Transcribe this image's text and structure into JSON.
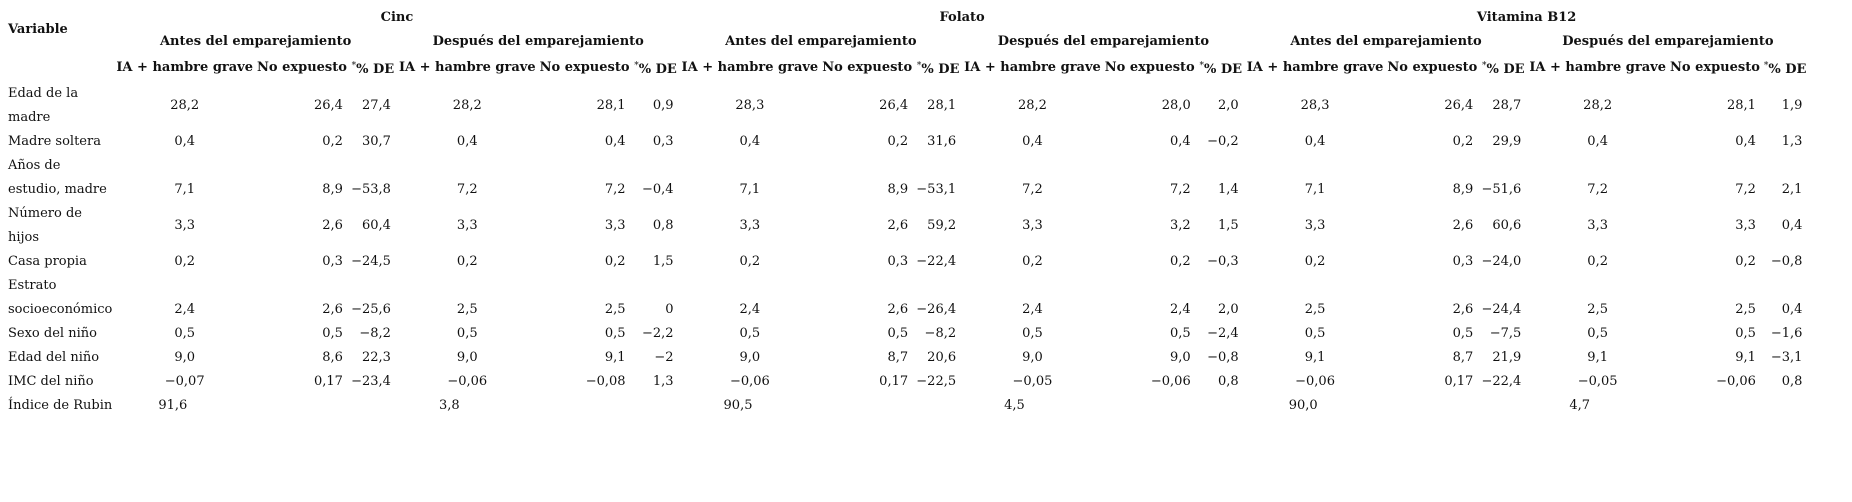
{
  "table": {
    "variable_header": "Variable",
    "nutrients": [
      "Cinc",
      "Folato",
      "Vitamina B12"
    ],
    "phases": [
      "Antes del emparejamiento",
      "Después del emparejamiento"
    ],
    "col_headers": [
      "IA + hambre grave",
      "No expuesto",
      "*",
      "% DE"
    ],
    "rows": [
      {
        "label": "Edad de la madre",
        "cells": [
          "28,2",
          "26,4",
          "27,4",
          "28,2",
          "28,1",
          "0,9",
          "28,3",
          "26,4",
          "28,1",
          "28,2",
          "28,0",
          "2,0",
          "28,3",
          "26,4",
          "28,7",
          "28,2",
          "28,1",
          "1,9"
        ]
      },
      {
        "label": "Madre soltera",
        "cells": [
          "0,4",
          "0,2",
          "30,7",
          "0,4",
          "0,4",
          "0,3",
          "0,4",
          "0,2",
          "31,6",
          "0,4",
          "0,4",
          "−0,2",
          "0,4",
          "0,2",
          "29,9",
          "0,4",
          "0,4",
          "1,3"
        ]
      },
      {
        "label": "Años de estudio, madre",
        "cells": [
          "7,1",
          "8,9",
          "−53,8",
          "7,2",
          "7,2",
          "−0,4",
          "7,1",
          "8,9",
          "−53,1",
          "7,2",
          "7,2",
          "1,4",
          "7,1",
          "8,9",
          "−51,6",
          "7,2",
          "7,2",
          "2,1"
        ]
      },
      {
        "label": "Número de hijos",
        "cells": [
          "3,3",
          "2,6",
          "60,4",
          "3,3",
          "3,3",
          "0,8",
          "3,3",
          "2,6",
          "59,2",
          "3,3",
          "3,2",
          "1,5",
          "3,3",
          "2,6",
          "60,6",
          "3,3",
          "3,3",
          "0,4"
        ]
      },
      {
        "label": "Casa propia",
        "cells": [
          "0,2",
          "0,3",
          "−24,5",
          "0,2",
          "0,2",
          "1,5",
          "0,2",
          "0,3",
          "−22,4",
          "0,2",
          "0,2",
          "−0,3",
          "0,2",
          "0,3",
          "−24,0",
          "0,2",
          "0,2",
          "−0,8"
        ]
      },
      {
        "label": "Estrato socioeconómico",
        "cells": [
          "2,4",
          "2,6",
          "−25,6",
          "2,5",
          "2,5",
          "0",
          "2,4",
          "2,6",
          "−26,4",
          "2,4",
          "2,4",
          "2,0",
          "2,5",
          "2,6",
          "−24,4",
          "2,5",
          "2,5",
          "0,4"
        ]
      },
      {
        "label": "Sexo del niño",
        "cells": [
          "0,5",
          "0,5",
          "−8,2",
          "0,5",
          "0,5",
          "−2,2",
          "0,5",
          "0,5",
          "−8,2",
          "0,5",
          "0,5",
          "−2,4",
          "0,5",
          "0,5",
          "−7,5",
          "0,5",
          "0,5",
          "−1,6"
        ]
      },
      {
        "label": "Edad del niño",
        "cells": [
          "9,0",
          "8,6",
          "22,3",
          "9,0",
          "9,1",
          "−2",
          "9,0",
          "8,7",
          "20,6",
          "9,0",
          "9,0",
          "−0,8",
          "9,1",
          "8,7",
          "21,9",
          "9,1",
          "9,1",
          "−3,1"
        ]
      },
      {
        "label": "IMC del niño",
        "cells": [
          "−0,07",
          "0,17",
          "−23,4",
          "−0,06",
          "−0,08",
          "1,3",
          "−0,06",
          "0,17",
          "−22,5",
          "−0,05",
          "−0,06",
          "0,8",
          "−0,06",
          "0,17",
          "−22,4",
          "−0,05",
          "−0,06",
          "0,8"
        ]
      },
      {
        "label": "Índice de Rubin",
        "rubin": [
          "91,6",
          "3,8",
          "90,5",
          "4,5",
          "90,0",
          "4,7"
        ]
      }
    ]
  }
}
